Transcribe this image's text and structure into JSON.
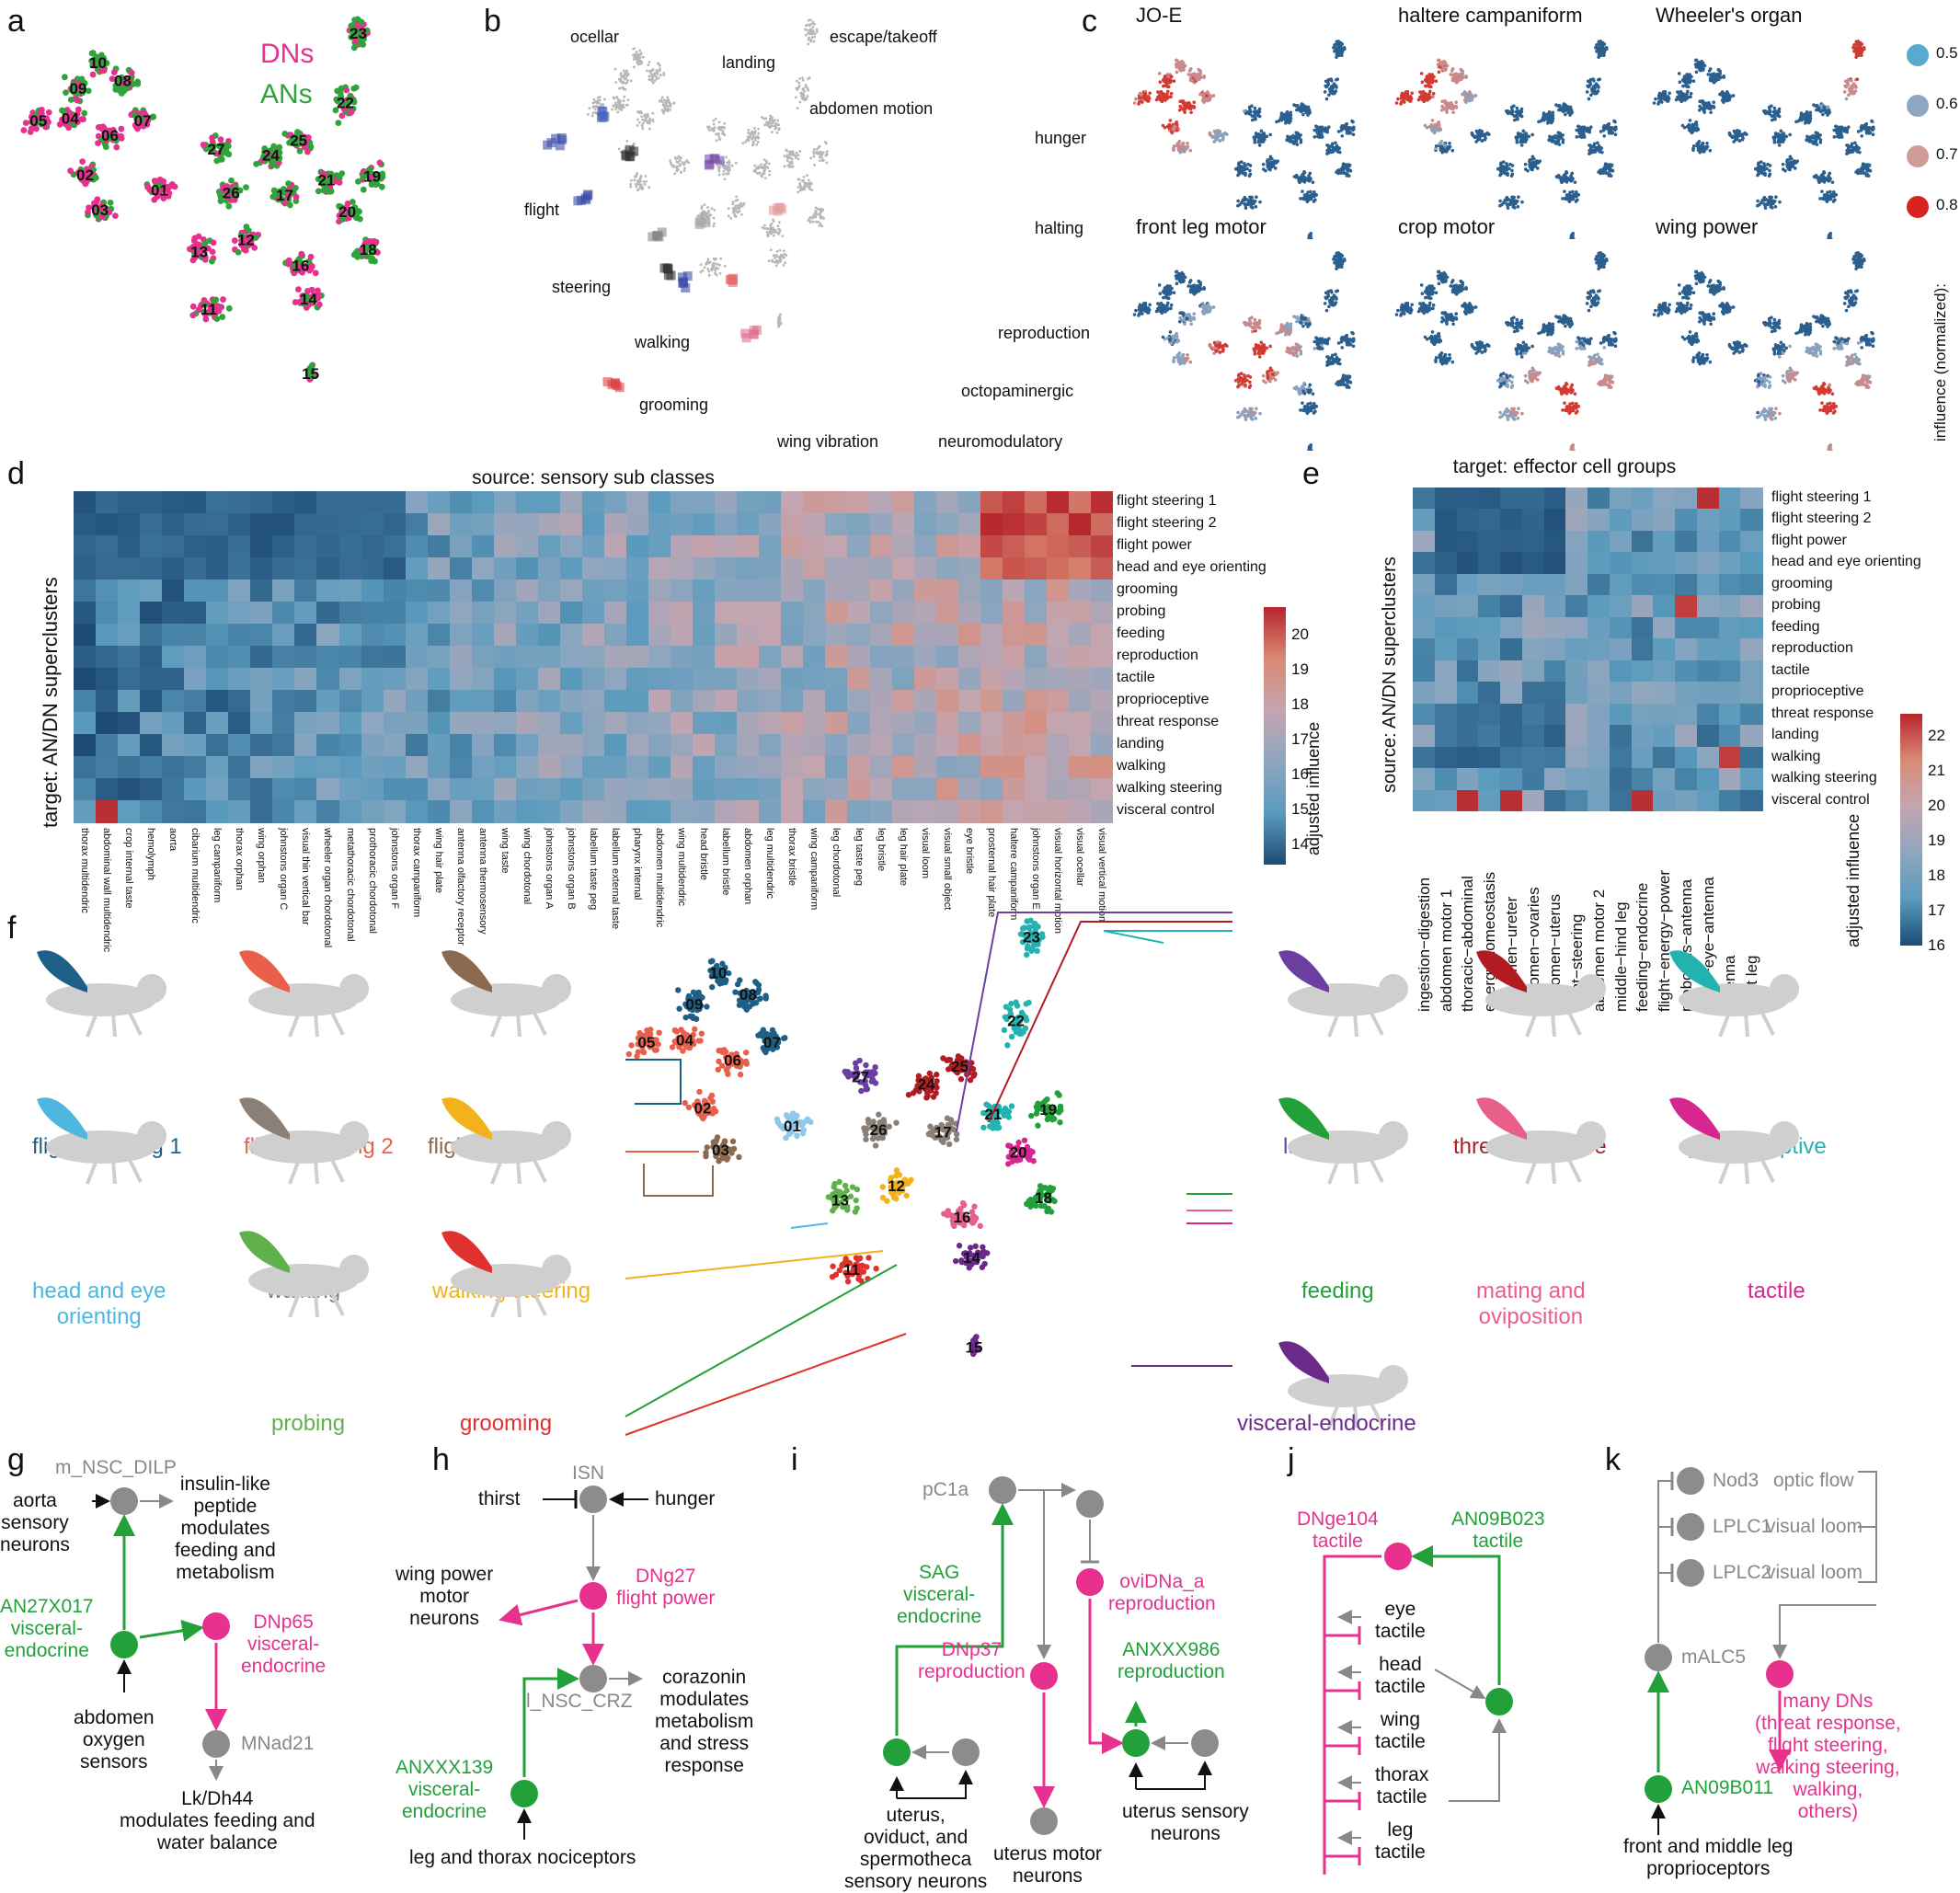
{
  "panel_labels": [
    "a",
    "b",
    "c",
    "d",
    "e",
    "f",
    "g",
    "h",
    "i",
    "j",
    "k"
  ],
  "panel_a": {
    "legend": {
      "dns": "DNs",
      "ans": "ANs"
    },
    "colors": {
      "dns": "#e8308f",
      "ans": "#2ea43a"
    },
    "clusters": [
      "01",
      "02",
      "03",
      "04",
      "05",
      "06",
      "07",
      "08",
      "09",
      "10",
      "11",
      "12",
      "13",
      "14",
      "15",
      "16",
      "17",
      "18",
      "19",
      "20",
      "21",
      "22",
      "23",
      "24",
      "25",
      "26",
      "27"
    ]
  },
  "panel_b": {
    "behaviors": [
      "ocellar",
      "landing",
      "escape/takeoff",
      "abdomen motion",
      "hunger",
      "flight",
      "halting",
      "steering",
      "walking",
      "reproduction",
      "grooming",
      "octopaminergic",
      "wing vibration",
      "neuromodulatory"
    ]
  },
  "panel_c": {
    "maps": [
      "JO-E",
      "haltere  campaniform",
      "Wheeler's organ",
      "front leg motor",
      "crop motor",
      "wing power"
    ],
    "legend_values": [
      "0.5",
      "0.6",
      "0.7",
      "0.8"
    ],
    "legend_title": "influence (normalized):"
  },
  "panel_d": {
    "title": "source: sensory sub classes",
    "ylabel": "target: AN/DN superclusters",
    "cbar_label": "adjusted influence",
    "cbar_ticks": [
      "20",
      "19",
      "18",
      "17",
      "16",
      "15",
      "14"
    ],
    "rows": [
      "flight steering 1",
      "flight steering 2",
      "flight power",
      "head and eye orienting",
      "grooming",
      "probing",
      "feeding",
      "reproduction",
      "tactile",
      "proprioceptive",
      "threat response",
      "landing",
      "walking",
      "walking steering",
      "visceral control"
    ],
    "cols": [
      "thorax multidendric",
      "abdominal wall multidendric",
      "crop internal taste",
      "hemolymph",
      "aorta",
      "cibarium multidendric",
      "leg campaniform",
      "thorax orphan",
      "wing orphan",
      "johnstons organ C",
      "visual thin vertical bar",
      "wheeler organ chordotonal",
      "metathoracic chordotonal",
      "prothoracic chordotonal",
      "johnstons organ F",
      "thorax campaniform",
      "wing hair plate",
      "antenna olfactory receptor",
      "antenna thermosensory",
      "wing taste",
      "wing chordotonal",
      "johnstons organ A",
      "johnstons organ B",
      "labellum taste peg",
      "labellum external taste",
      "pharynx internal",
      "abdomen multidendric",
      "wing multidendric",
      "head bristle",
      "labellum bristle",
      "abdomen orphan",
      "leg multidendric",
      "thorax bristle",
      "wing campaniform",
      "leg chordotonal",
      "leg taste peg",
      "leg bristle",
      "leg hair plate",
      "visual loom",
      "visual small object",
      "eye bristle",
      "prosternal hair plate",
      "haltere campaniform",
      "johnstons organ E",
      "visual horizontal motion",
      "visual ocellar",
      "visual vertical motion"
    ]
  },
  "panel_e": {
    "title": "target: effector cell groups",
    "ylabel": "source: AN/DN superclusters",
    "cbar_label": "adjusted influence",
    "cbar_ticks": [
      "22",
      "21",
      "20",
      "19",
      "18",
      "17",
      "16"
    ],
    "rows": [
      "flight steering 1",
      "flight steering 2",
      "flight power",
      "head and eye orienting",
      "grooming",
      "probing",
      "feeding",
      "reproduction",
      "tactile",
      "proprioceptive",
      "threat response",
      "landing",
      "walking",
      "walking steering",
      "visceral control"
    ],
    "cols": [
      "ingestion−digestion",
      "abdomen motor 1",
      "thoracic−abdominal",
      "energy homeostasis",
      "abdomen−ureter",
      "abdomen−ovaries",
      "abdomen−uterus",
      "flight−steering",
      "abdomen motor 2",
      "middle−hind leg",
      "feeding−endocrine",
      "flight−energy−power",
      "proboscis−antenna",
      "head−eye−antenna",
      "antenna",
      "front leg"
    ]
  },
  "panel_f": {
    "left": [
      {
        "label": "flight steering 1",
        "color": "#1d5f86"
      },
      {
        "label": "flight steering 2",
        "color": "#e8604a"
      },
      {
        "label": "flight power",
        "color": "#8b6a4f"
      },
      {
        "label": "head and eye\norienting",
        "color": "#4fb6df"
      },
      {
        "label": "walking",
        "color": "#8a8077"
      },
      {
        "label": "walking steering",
        "color": "#f2b21c"
      },
      {
        "label": "probing",
        "color": "#5fb14e"
      },
      {
        "label": "grooming",
        "color": "#e0312d"
      }
    ],
    "right": [
      {
        "label": "landing",
        "color": "#6a3fa0"
      },
      {
        "label": "threat response",
        "color": "#b01c22"
      },
      {
        "label": "proprioceptive",
        "color": "#22b3b0"
      },
      {
        "label": "feeding",
        "color": "#22a03a"
      },
      {
        "label": "mating and\noviposition",
        "color": "#e8608a"
      },
      {
        "label": "tactile",
        "color": "#d7268f"
      },
      {
        "label": "visceral-endocrine",
        "color": "#6b2a8a"
      }
    ]
  },
  "panel_g": {
    "nodes": [
      "m_NSC_DILP",
      "aorta\nsensory\nneurons",
      "insulin-like\npeptide\nmodulates\nfeeding and\nmetabolism",
      "AN27X017\nvisceral-\nendocrine",
      "DNp65\nvisceral-\nendocrine",
      "abdomen\noxygen\nsensors",
      "MNad21",
      "Lk/Dh44\nmodulates feeding and\nwater balance"
    ]
  },
  "panel_h": {
    "nodes": [
      "ISN",
      "thirst",
      "hunger",
      "wing power\nmotor\nneurons",
      "DNg27\nflight power",
      "l_NSC_CRZ",
      "corazonin\nmodulates\nmetabolism\nand stress\nresponse",
      "ANXXX139\nvisceral-\nendocrine",
      "leg and thorax nociceptors"
    ]
  },
  "panel_i": {
    "nodes": [
      "pC1a",
      "SAG\nvisceral-\nendocrine",
      "oviDNa_a\nreproduction",
      "DNp37\nreproduction",
      "ANXXX986\nreproduction",
      "uterus,\noviduct, and\nspermotheca\nsensory neurons",
      "uterus motor\nneurons",
      "uterus sensory\nneurons"
    ]
  },
  "panel_j": {
    "nodes": [
      "DNge104\ntactile",
      "AN09B023\ntactile",
      "eye\ntactile",
      "head\ntactile",
      "wing\ntactile",
      "thorax\ntactile",
      "leg\ntactile"
    ]
  },
  "panel_k": {
    "nodes": [
      "Nod3",
      "optic flow",
      "LPLC1",
      "visual loom",
      "LPLC2",
      "visual loom",
      "mALC5",
      "many DNs\n(threat response,\nflight steering,\nwalking steering,\nwalking,\nothers)",
      "AN09B011",
      "front and middle leg\nproprioceptors"
    ]
  }
}
